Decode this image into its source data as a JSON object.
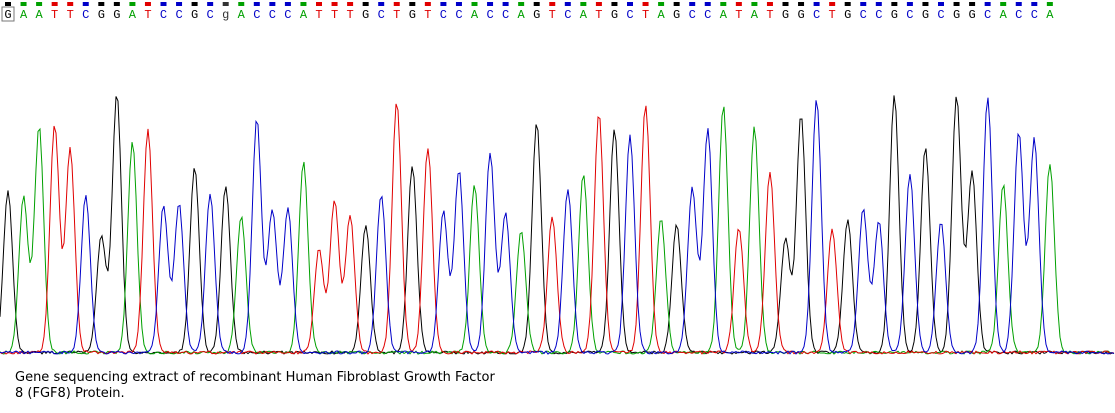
{
  "sequence": {
    "bases": [
      "G",
      "A",
      "A",
      "T",
      "T",
      "C",
      "G",
      "G",
      "A",
      "T",
      "C",
      "C",
      "G",
      "C",
      "g",
      "A",
      "C",
      "C",
      "C",
      "A",
      "T",
      "T",
      "T",
      "G",
      "C",
      "T",
      "G",
      "T",
      "C",
      "C",
      "A",
      "C",
      "C",
      "A",
      "G",
      "T",
      "C",
      "A",
      "T",
      "G",
      "C",
      "T",
      "A",
      "G",
      "C",
      "C",
      "A",
      "T",
      "A",
      "T",
      "G",
      "G",
      "C",
      "T",
      "G",
      "C",
      "C",
      "G",
      "C",
      "G",
      "C",
      "G",
      "G",
      "C",
      "A",
      "C",
      "C",
      "A"
    ]
  },
  "caption": {
    "lines": [
      "Gene sequencing extract of recombinant Human Fibroblast Growth Factor",
      "8 (FGF8) Protein."
    ]
  }
}
